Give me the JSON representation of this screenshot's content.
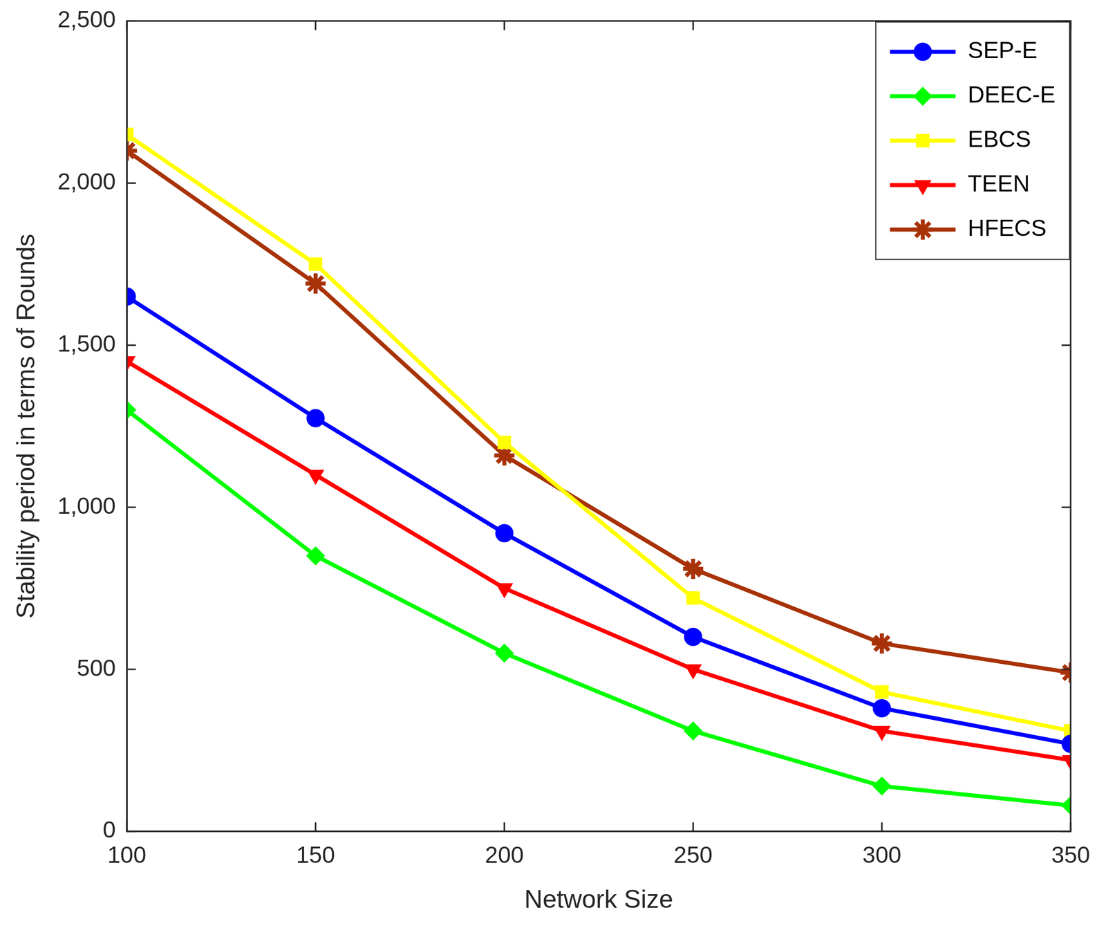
{
  "chart_data": {
    "type": "line",
    "x_label": "Network Size",
    "y_label": "Stability period in terms of Rounds",
    "x": [
      100,
      150,
      200,
      250,
      300,
      350
    ],
    "xlim": [
      100,
      350
    ],
    "xticks": [
      100,
      150,
      200,
      250,
      300,
      350
    ],
    "ylim": [
      0,
      2500
    ],
    "yticks": [
      0,
      500,
      1000,
      1500,
      2000,
      2500
    ],
    "grid": false,
    "legend": "upper right",
    "series": [
      {
        "name": "SEP-E",
        "color": "#0000ff",
        "marker": "circle",
        "line_style": "solid",
        "values": [
          1650,
          1275,
          920,
          600,
          380,
          270
        ]
      },
      {
        "name": "DEEC-E",
        "color": "#00ff00",
        "marker": "diamond",
        "line_style": "solid",
        "values": [
          1300,
          850,
          550,
          310,
          140,
          80
        ]
      },
      {
        "name": "EBCS",
        "color": "#ffff00",
        "marker": "square",
        "line_style": "solid",
        "values": [
          2150,
          1750,
          1200,
          720,
          430,
          310
        ]
      },
      {
        "name": "TEEN",
        "color": "#ff0000",
        "marker": "triangle-down",
        "line_style": "solid",
        "values": [
          1450,
          1100,
          750,
          500,
          310,
          220
        ]
      },
      {
        "name": "HFECS",
        "color": "#a83208",
        "marker": "star",
        "line_style": "solid",
        "values": [
          2100,
          1690,
          1160,
          810,
          580,
          490
        ]
      }
    ]
  }
}
